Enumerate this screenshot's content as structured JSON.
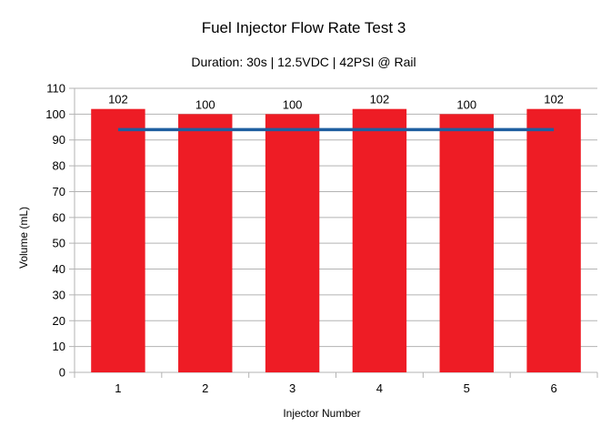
{
  "chart_data": {
    "type": "bar",
    "title": "Fuel Injector Flow Rate Test 3",
    "subtitle": "Duration: 30s | 12.5VDC | 42PSI @ Rail",
    "xlabel": "Injector Number",
    "ylabel": "Volume (mL)",
    "categories": [
      "1",
      "2",
      "3",
      "4",
      "5",
      "6"
    ],
    "values": [
      102,
      100,
      100,
      102,
      100,
      102
    ],
    "data_labels": [
      "102",
      "100",
      "100",
      "102",
      "100",
      "102"
    ],
    "ylim": [
      0,
      110
    ],
    "yticks": [
      0,
      10,
      20,
      30,
      40,
      50,
      60,
      70,
      80,
      90,
      100,
      110
    ],
    "grid": true,
    "bar_color": "#ee1c25",
    "reference_line": {
      "type": "line",
      "value": 94,
      "color": "#1f5fa0"
    }
  }
}
